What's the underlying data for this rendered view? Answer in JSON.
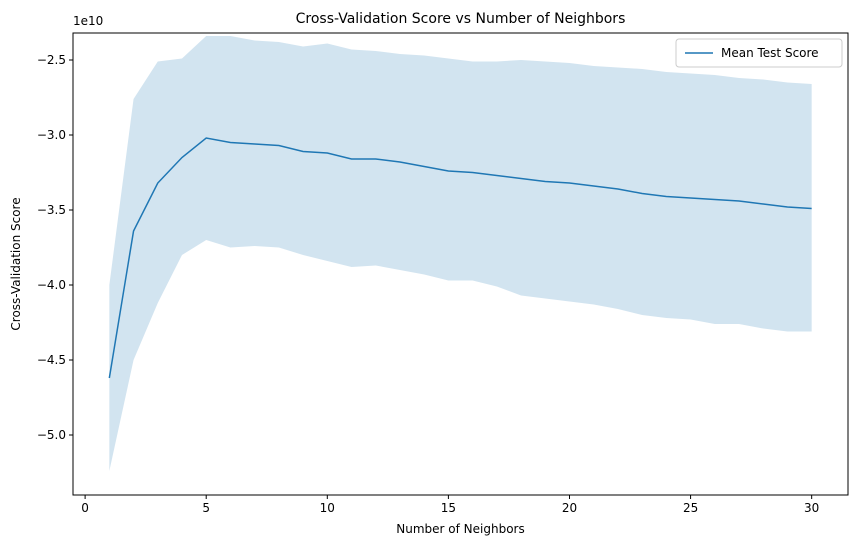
{
  "chart_data": {
    "type": "line",
    "title": "Cross-Validation Score vs Number of Neighbors",
    "xlabel": "Number of Neighbors",
    "ylabel": "Cross-Validation Score",
    "y_offset_label": "1e10",
    "y_scale": 10000000000.0,
    "xlim": [
      -0.5,
      31.5
    ],
    "ylim": [
      -5.4,
      -2.32
    ],
    "xticks": [
      0,
      5,
      10,
      15,
      20,
      25,
      30
    ],
    "yticks": [
      -5.0,
      -4.5,
      -4.0,
      -3.5,
      -3.0,
      -2.5
    ],
    "grid": false,
    "legend_position": "top-right",
    "line_color": "#1f77b4",
    "band_color": "#1f77b4",
    "x": [
      1,
      2,
      3,
      4,
      5,
      6,
      7,
      8,
      9,
      10,
      11,
      12,
      13,
      14,
      15,
      16,
      17,
      18,
      19,
      20,
      21,
      22,
      23,
      24,
      25,
      26,
      27,
      28,
      29,
      30
    ],
    "series": [
      {
        "name": "Mean Test Score",
        "values": [
          -4.62,
          -3.64,
          -3.32,
          -3.15,
          -3.02,
          -3.05,
          -3.06,
          -3.07,
          -3.11,
          -3.12,
          -3.16,
          -3.16,
          -3.18,
          -3.21,
          -3.24,
          -3.25,
          -3.27,
          -3.29,
          -3.31,
          -3.32,
          -3.34,
          -3.36,
          -3.39,
          -3.41,
          -3.42,
          -3.43,
          -3.44,
          -3.46,
          -3.48,
          -3.49
        ],
        "lower": [
          -5.24,
          -4.5,
          -4.12,
          -3.8,
          -3.7,
          -3.75,
          -3.74,
          -3.75,
          -3.8,
          -3.84,
          -3.88,
          -3.87,
          -3.9,
          -3.93,
          -3.97,
          -3.97,
          -4.01,
          -4.07,
          -4.09,
          -4.11,
          -4.13,
          -4.16,
          -4.2,
          -4.22,
          -4.23,
          -4.26,
          -4.26,
          -4.29,
          -4.31,
          -4.31
        ],
        "upper": [
          -4.0,
          -2.76,
          -2.51,
          -2.49,
          -2.34,
          -2.34,
          -2.37,
          -2.38,
          -2.41,
          -2.39,
          -2.43,
          -2.44,
          -2.46,
          -2.47,
          -2.49,
          -2.51,
          -2.51,
          -2.5,
          -2.51,
          -2.52,
          -2.54,
          -2.55,
          -2.56,
          -2.58,
          -2.59,
          -2.6,
          -2.62,
          -2.63,
          -2.65,
          -2.66
        ]
      }
    ]
  }
}
